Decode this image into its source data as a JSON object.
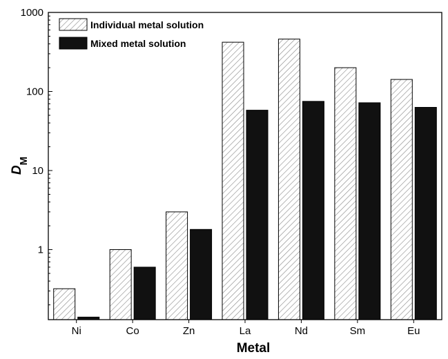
{
  "chart_data": {
    "type": "bar",
    "xlabel": "Metal",
    "ylabel": "D",
    "ylabel_subscript": "M",
    "yscale": "log",
    "ylim": [
      0.13,
      1000
    ],
    "yticks": [
      1,
      10,
      100,
      1000
    ],
    "ytick_labels": [
      "1",
      "10",
      "100",
      "1000"
    ],
    "categories": [
      "Ni",
      "Co",
      "Zn",
      "La",
      "Nd",
      "Sm",
      "Eu"
    ],
    "series": [
      {
        "name": "Individual metal solution",
        "pattern": "hatched",
        "values": [
          0.32,
          1.0,
          3.0,
          420,
          460,
          200,
          142
        ]
      },
      {
        "name": "Mixed metal solution",
        "pattern": "solid",
        "values": [
          0.14,
          0.6,
          1.8,
          58,
          75,
          72,
          63
        ]
      }
    ],
    "legend_position": "top-left",
    "grid": false,
    "colors": {
      "individual_fill": "#ffffff",
      "hatch": "#888888",
      "mixed_fill": "#111111",
      "axis": "#000000"
    }
  }
}
